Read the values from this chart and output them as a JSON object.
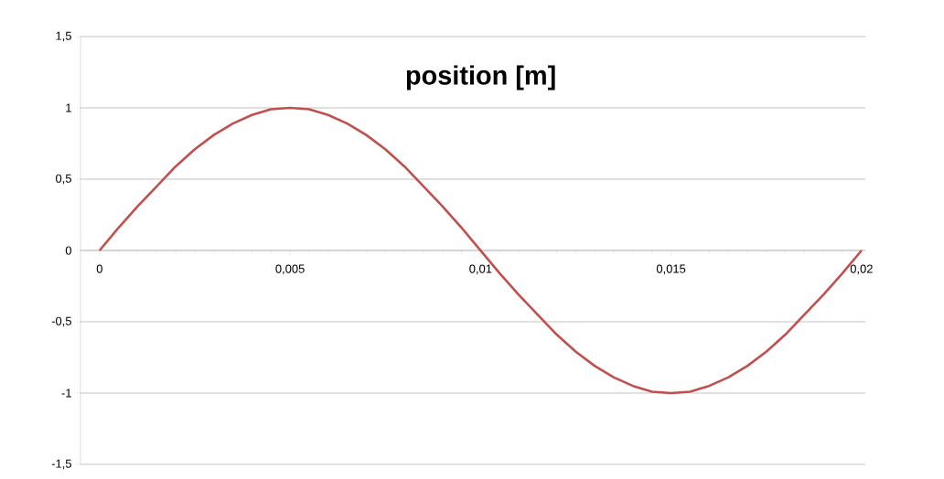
{
  "chart_data": {
    "type": "line",
    "title": "position [m]",
    "x": [
      0,
      0.0005,
      0.001,
      0.0015,
      0.002,
      0.0025,
      0.003,
      0.0035,
      0.004,
      0.0045,
      0.005,
      0.0055,
      0.006,
      0.0065,
      0.007,
      0.0075,
      0.008,
      0.0085,
      0.009,
      0.0095,
      0.01,
      0.0105,
      0.011,
      0.0115,
      0.012,
      0.0125,
      0.013,
      0.0135,
      0.014,
      0.0145,
      0.015,
      0.0155,
      0.016,
      0.0165,
      0.017,
      0.0175,
      0.018,
      0.0185,
      0.019,
      0.0195,
      0.02
    ],
    "series": [
      {
        "color": "#c0504d",
        "values": [
          0,
          0.16,
          0.31,
          0.45,
          0.59,
          0.71,
          0.81,
          0.89,
          0.95,
          0.99,
          1,
          0.99,
          0.95,
          0.89,
          0.81,
          0.71,
          0.59,
          0.45,
          0.31,
          0.16,
          0,
          -0.16,
          -0.31,
          -0.45,
          -0.59,
          -0.71,
          -0.81,
          -0.89,
          -0.95,
          -0.99,
          -1,
          -0.99,
          -0.95,
          -0.89,
          -0.81,
          -0.71,
          -0.59,
          -0.45,
          -0.31,
          -0.16,
          0
        ]
      }
    ],
    "xlim": [
      -0.0005,
      0.0201
    ],
    "ylim": [
      -1.5,
      1.5
    ],
    "xticks": [
      0,
      {
        "value": 0.005,
        "label": "0,005"
      },
      {
        "value": 0.01,
        "label": "0,01"
      },
      {
        "value": 0.015,
        "label": "0,015"
      },
      {
        "value": 0.02,
        "label": "0,02"
      }
    ],
    "yticks": [
      {
        "value": -1.5,
        "label": "-1,5"
      },
      -1,
      {
        "value": -0.5,
        "label": "-0,5"
      },
      0,
      {
        "value": 0.5,
        "label": "0,5"
      },
      1,
      {
        "value": 1.5,
        "label": "1,5"
      }
    ],
    "grid": "y",
    "marker": "none",
    "line_style": "solid"
  }
}
